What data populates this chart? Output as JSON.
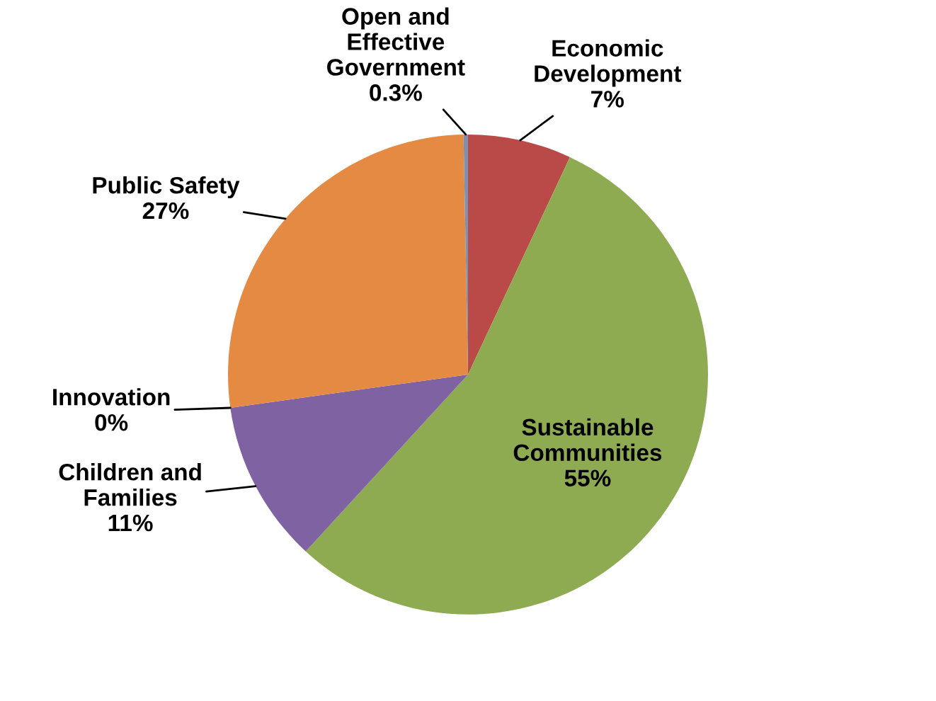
{
  "chart_data": {
    "type": "pie",
    "categories": [
      "Economic\nDevelopment",
      "Sustainable\nCommunities",
      "Children and\nFamilies",
      "Innovation",
      "Public Safety",
      "Open and\nEffective\nGovernment"
    ],
    "values": [
      7,
      55,
      11,
      0,
      27,
      0.3
    ],
    "value_labels": [
      "7%",
      "55%",
      "11%",
      "0%",
      "27%",
      "0.3%"
    ],
    "colors": [
      "#b94a48",
      "#8fab52",
      "#7e62a1",
      "#7e62a1",
      "#e58a43",
      "#7f90b0"
    ]
  }
}
